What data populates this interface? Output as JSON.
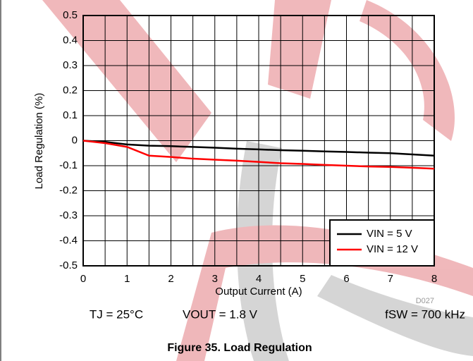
{
  "chart_data": {
    "type": "line",
    "x_label": "Output Current (A)",
    "y_label": "Load Regulation (%)",
    "x": [
      0,
      0.5,
      1,
      1.5,
      2,
      2.5,
      3,
      3.5,
      4,
      4.5,
      5,
      5.5,
      6,
      6.5,
      7,
      7.5,
      8
    ],
    "series": [
      {
        "name": "VIN = 5 V",
        "color": "#000000",
        "values": [
          0,
          -0.005,
          -0.015,
          -0.02,
          -0.022,
          -0.025,
          -0.028,
          -0.032,
          -0.035,
          -0.038,
          -0.04,
          -0.043,
          -0.045,
          -0.048,
          -0.05,
          -0.055,
          -0.06
        ]
      },
      {
        "name": "VIN = 12 V",
        "color": "#ff0000",
        "values": [
          0,
          -0.01,
          -0.025,
          -0.06,
          -0.065,
          -0.072,
          -0.076,
          -0.08,
          -0.085,
          -0.09,
          -0.093,
          -0.097,
          -0.1,
          -0.103,
          -0.105,
          -0.108,
          -0.112
        ]
      }
    ],
    "xlim": [
      0,
      8
    ],
    "xticks": [
      0,
      1,
      2,
      3,
      4,
      5,
      6,
      7,
      8
    ],
    "xgrid": [
      0,
      0.5,
      1,
      1.5,
      2,
      2.5,
      3,
      3.5,
      4,
      4.5,
      5,
      5.5,
      6,
      6.5,
      7,
      7.5,
      8
    ],
    "ylim": [
      -0.5,
      0.5
    ],
    "yticks": [
      0.5,
      0.4,
      0.3,
      0.2,
      0.1,
      0,
      -0.1,
      -0.2,
      -0.3,
      -0.4,
      -0.5
    ],
    "grid": true,
    "legend": "lower-right",
    "annotations": [
      "TJ = 25°C",
      "VOUT = 1.8 V",
      "fSW = 700 kHz",
      "D027"
    ],
    "caption": "Figure 35. Load Regulation"
  }
}
